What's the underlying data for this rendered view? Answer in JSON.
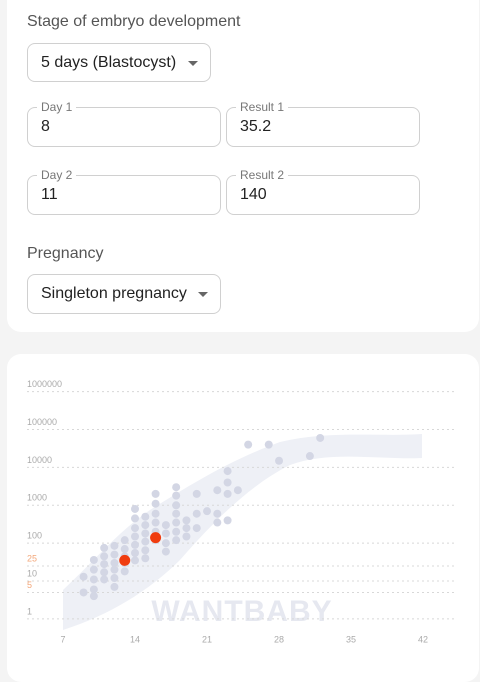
{
  "form": {
    "stage": {
      "label": "Stage of embryo development",
      "value": "5 days (Blastocyst)"
    },
    "measurements": [
      {
        "day": {
          "label": "Day 1",
          "value": 8
        },
        "result": {
          "label": "Result 1",
          "value": 35.2
        }
      },
      {
        "day": {
          "label": "Day 2",
          "value": 11
        },
        "result": {
          "label": "Result 2",
          "value": 140
        }
      }
    ],
    "pregnancy": {
      "label": "Pregnancy",
      "value": "Singleton pregnancy"
    }
  },
  "chart_data": {
    "type": "scatter",
    "watermark": "WANTBABY",
    "yscale": "log",
    "grid": true,
    "xlim": [
      3.5,
      45.3
    ],
    "xticks": [
      7,
      14,
      21,
      28,
      35,
      42
    ],
    "ylim": [
      0.65,
      1500000
    ],
    "yticks": [
      1,
      10,
      100,
      1000,
      10000,
      100000,
      1000000
    ],
    "tick_color": "#aaaaaa",
    "reference_yticks": [
      5,
      25
    ],
    "reference_color": "#f3a77a",
    "series": [
      {
        "color": "#d3d6e4",
        "x": [
          9,
          9,
          10,
          10,
          10,
          10,
          10,
          11,
          11,
          11,
          11,
          11,
          12,
          12,
          12,
          12,
          12,
          12,
          13,
          13,
          13,
          13,
          13,
          14,
          14,
          14,
          14,
          14,
          14,
          14,
          15,
          15,
          15,
          15,
          15,
          15,
          16,
          16,
          16,
          16,
          16,
          16,
          17,
          17,
          17,
          17,
          18,
          18,
          18,
          18,
          18,
          18,
          18,
          19,
          19,
          19,
          20,
          20,
          20,
          21,
          22,
          22,
          22,
          23,
          23,
          23,
          23,
          24,
          25,
          27,
          28,
          31,
          32
        ],
        "values": [
          13,
          5,
          36,
          20,
          11,
          6,
          4,
          75,
          45,
          28,
          17,
          11,
          85,
          50,
          30,
          20,
          12,
          7,
          120,
          70,
          45,
          30,
          18,
          800,
          450,
          250,
          150,
          90,
          55,
          35,
          500,
          300,
          180,
          110,
          65,
          40,
          2000,
          1100,
          600,
          350,
          200,
          120,
          300,
          180,
          100,
          60,
          3000,
          1800,
          1000,
          600,
          350,
          200,
          120,
          400,
          250,
          150,
          2000,
          600,
          250,
          700,
          2500,
          600,
          350,
          8000,
          4000,
          2000,
          400,
          2500,
          40000,
          40000,
          15000,
          20000,
          60000
        ]
      },
      {
        "color": "#f03c0f",
        "x": [
          13,
          16
        ],
        "values": [
          35.2,
          140
        ]
      }
    ]
  }
}
